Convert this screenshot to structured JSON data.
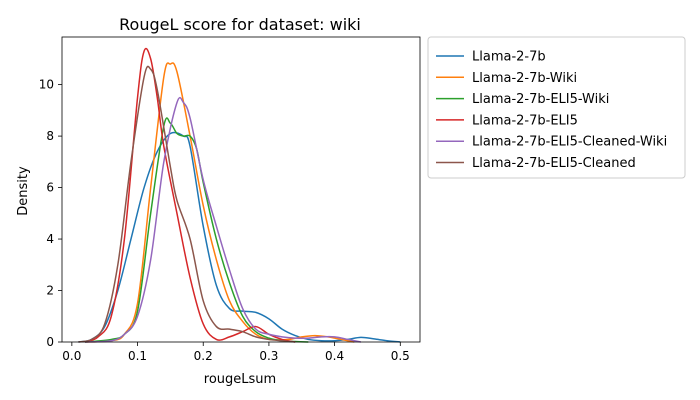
{
  "chart_data": {
    "type": "line",
    "title": "RougeL score for dataset: wiki",
    "xlabel": "rougeLsum",
    "ylabel": "Density",
    "xlim": [
      -0.015,
      0.53
    ],
    "ylim": [
      0,
      11.85
    ],
    "xticks": [
      "0.0",
      "0.1",
      "0.2",
      "0.3",
      "0.4",
      "0.5"
    ],
    "xtick_values": [
      0.0,
      0.1,
      0.2,
      0.3,
      0.4,
      0.5
    ],
    "yticks": [
      "0",
      "2",
      "4",
      "6",
      "8",
      "10"
    ],
    "ytick_values": [
      0,
      2,
      4,
      6,
      8,
      10
    ],
    "grid": false,
    "legend": "outside-right-top",
    "series": [
      {
        "name": "Llama-2-7b",
        "color": "#1f77b4",
        "x": [
          0.01,
          0.03,
          0.05,
          0.07,
          0.09,
          0.11,
          0.13,
          0.15,
          0.17,
          0.18,
          0.2,
          0.22,
          0.24,
          0.26,
          0.28,
          0.3,
          0.32,
          0.34,
          0.36,
          0.38,
          0.4,
          0.42,
          0.44,
          0.46,
          0.48,
          0.5
        ],
        "y": [
          0.0,
          0.1,
          0.6,
          2.0,
          4.0,
          6.0,
          7.4,
          8.1,
          8.0,
          7.6,
          4.5,
          2.2,
          1.3,
          1.2,
          1.15,
          0.9,
          0.5,
          0.25,
          0.1,
          0.05,
          0.05,
          0.1,
          0.18,
          0.12,
          0.05,
          0.0
        ]
      },
      {
        "name": "Llama-2-7b-Wiki",
        "color": "#ff7f0e",
        "x": [
          0.02,
          0.06,
          0.08,
          0.1,
          0.12,
          0.14,
          0.15,
          0.16,
          0.18,
          0.2,
          0.22,
          0.24,
          0.26,
          0.28,
          0.3,
          0.33,
          0.35,
          0.37,
          0.39,
          0.41,
          0.43
        ],
        "y": [
          0.0,
          0.05,
          0.3,
          1.5,
          6.0,
          10.3,
          10.8,
          10.5,
          8.0,
          5.3,
          3.2,
          1.6,
          0.8,
          0.3,
          0.1,
          0.1,
          0.2,
          0.25,
          0.2,
          0.1,
          0.0
        ]
      },
      {
        "name": "Llama-2-7b-ELI5-Wiki",
        "color": "#2ca02c",
        "x": [
          0.02,
          0.06,
          0.08,
          0.1,
          0.12,
          0.14,
          0.15,
          0.16,
          0.17,
          0.18,
          0.19,
          0.2,
          0.22,
          0.24,
          0.26,
          0.28,
          0.3,
          0.32,
          0.34,
          0.36
        ],
        "y": [
          0.0,
          0.1,
          0.3,
          1.2,
          5.0,
          8.4,
          8.5,
          8.1,
          8.0,
          8.0,
          7.5,
          6.2,
          4.0,
          2.3,
          1.0,
          0.4,
          0.15,
          0.05,
          0.02,
          0.0
        ]
      },
      {
        "name": "Llama-2-7b-ELI5",
        "color": "#d62728",
        "x": [
          0.02,
          0.04,
          0.06,
          0.08,
          0.1,
          0.11,
          0.12,
          0.13,
          0.14,
          0.16,
          0.18,
          0.2,
          0.22,
          0.24,
          0.26,
          0.28,
          0.3,
          0.32,
          0.34
        ],
        "y": [
          0.0,
          0.2,
          1.0,
          4.0,
          9.5,
          11.3,
          11.0,
          9.5,
          7.6,
          5.0,
          2.5,
          0.7,
          0.1,
          0.2,
          0.4,
          0.6,
          0.3,
          0.1,
          0.0
        ]
      },
      {
        "name": "Llama-2-7b-ELI5-Cleaned-Wiki",
        "color": "#9467bd",
        "x": [
          0.02,
          0.06,
          0.08,
          0.1,
          0.12,
          0.14,
          0.16,
          0.17,
          0.18,
          0.2,
          0.22,
          0.24,
          0.26,
          0.28,
          0.3,
          0.32,
          0.34,
          0.36,
          0.38,
          0.4,
          0.42,
          0.44
        ],
        "y": [
          0.0,
          0.05,
          0.3,
          1.0,
          3.2,
          7.0,
          9.3,
          9.3,
          8.7,
          6.3,
          4.5,
          2.8,
          1.3,
          0.5,
          0.3,
          0.2,
          0.15,
          0.15,
          0.2,
          0.2,
          0.1,
          0.0
        ]
      },
      {
        "name": "Llama-2-7b-ELI5-Cleaned",
        "color": "#8c564b",
        "x": [
          0.01,
          0.03,
          0.05,
          0.07,
          0.09,
          0.11,
          0.12,
          0.13,
          0.15,
          0.16,
          0.18,
          0.2,
          0.22,
          0.24,
          0.26,
          0.28,
          0.3,
          0.32,
          0.34
        ],
        "y": [
          0.0,
          0.1,
          0.7,
          3.0,
          7.0,
          10.3,
          10.6,
          9.8,
          6.8,
          5.5,
          4.0,
          1.6,
          0.6,
          0.5,
          0.4,
          0.2,
          0.1,
          0.05,
          0.0
        ]
      }
    ]
  }
}
